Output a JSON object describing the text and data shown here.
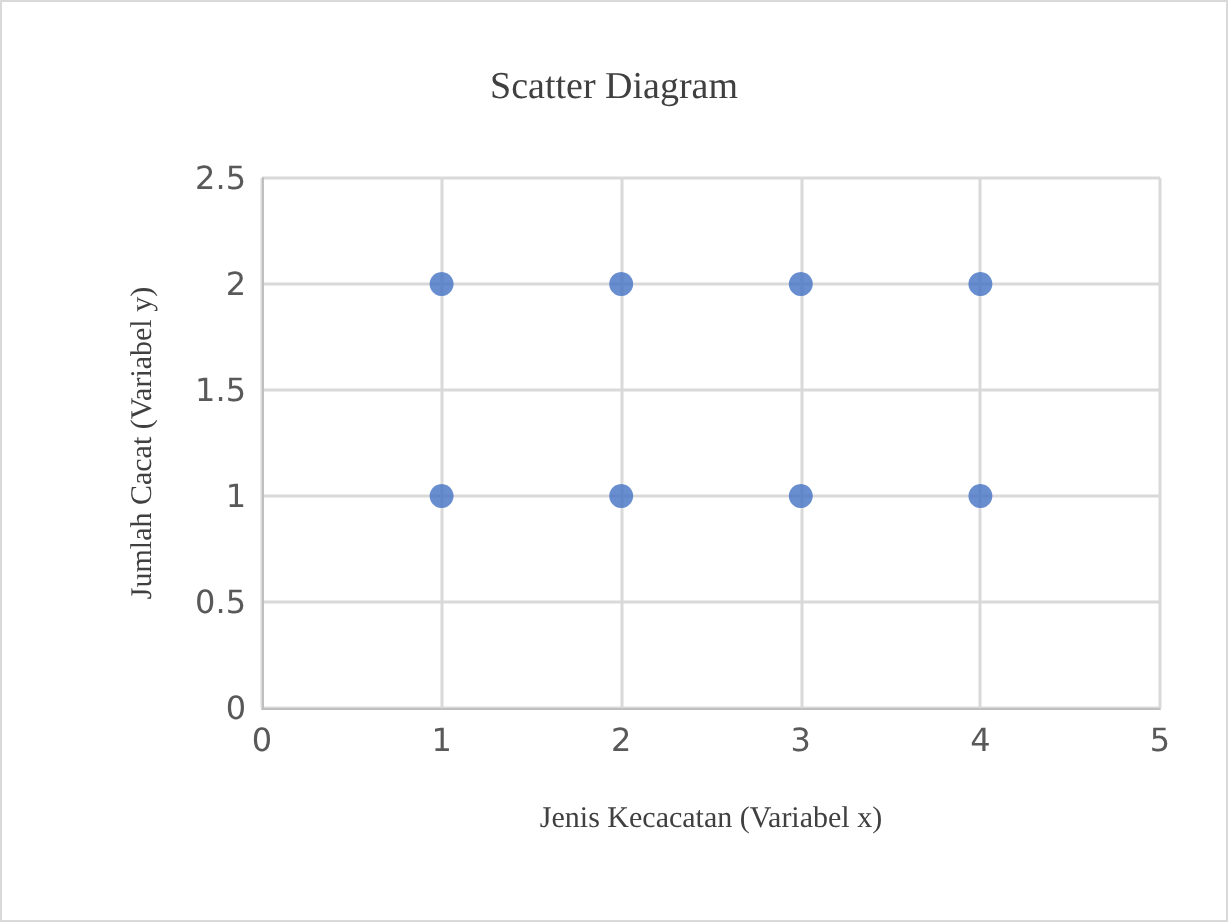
{
  "chart_data": {
    "type": "scatter",
    "title": "Scatter Diagram",
    "xlabel": "Jenis Kecacatan (Variabel x)",
    "ylabel": "Jumlah Cacat (Variabel y)",
    "x": [
      1,
      2,
      3,
      4,
      1,
      2,
      3,
      4
    ],
    "series": [
      {
        "color": "#4472c4",
        "values": [
          2,
          2,
          2,
          2,
          1,
          1,
          1,
          1
        ]
      }
    ],
    "xlim": [
      0,
      5
    ],
    "xticks": [
      0,
      1,
      2,
      3,
      4,
      5
    ],
    "ylim": [
      0,
      2.5
    ],
    "yticks": [
      0,
      0.5,
      1,
      1.5,
      2,
      2.5
    ],
    "grid": true,
    "marker": "circle"
  }
}
